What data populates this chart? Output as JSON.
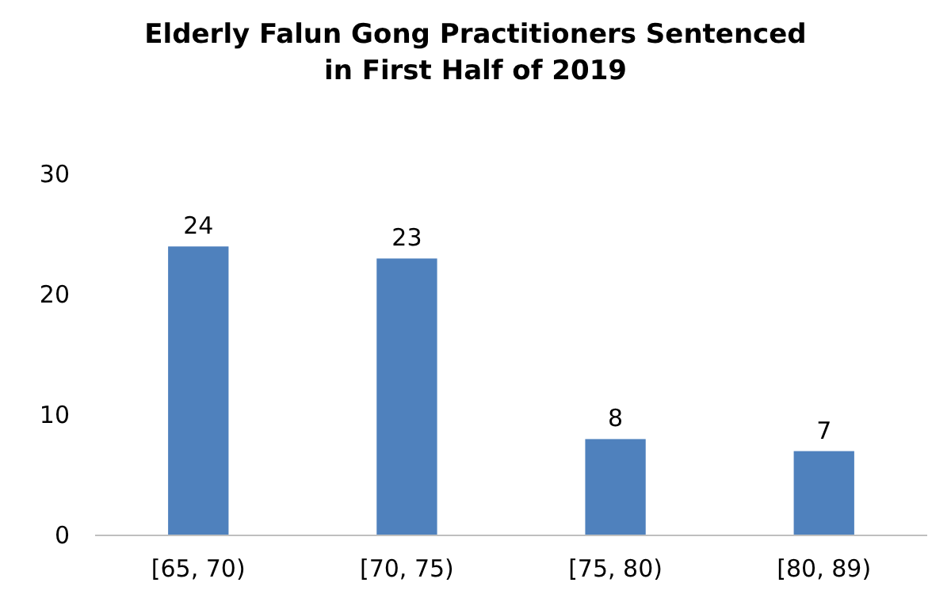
{
  "chart_data": {
    "type": "bar",
    "title": "Elderly Falun Gong Practitioners Sentenced\nin First Half of 2019",
    "categories": [
      "[65, 70)",
      "[70, 75)",
      "[75, 80)",
      "[80, 89)"
    ],
    "values": [
      24,
      23,
      8,
      7
    ],
    "color": "#4f81bd",
    "data_labels": true,
    "ylim": [
      0,
      30
    ],
    "yticks": [
      0,
      10,
      20,
      30
    ],
    "grid": false
  }
}
